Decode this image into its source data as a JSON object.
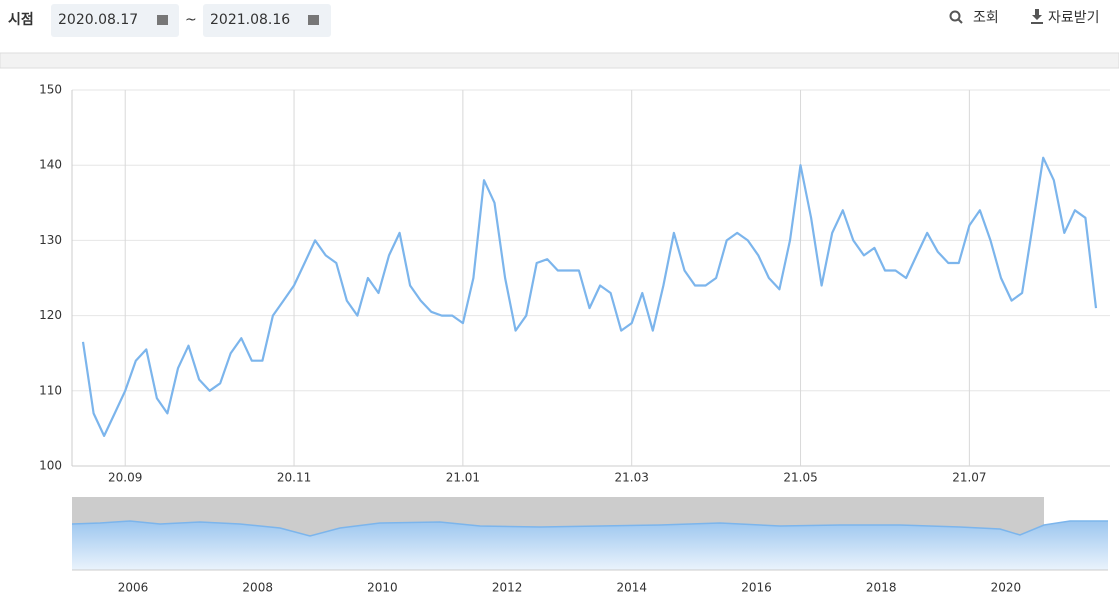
{
  "header": {
    "label": "시점",
    "start": "2020.08.17",
    "separator": "~",
    "end": "2021.08.16",
    "search": "조회",
    "download": "자료받기"
  },
  "chart_data": {
    "type": "line",
    "categories": [
      null,
      null,
      null,
      null,
      "20.09",
      null,
      null,
      null,
      null,
      null,
      null,
      null,
      null,
      null,
      null,
      null,
      null,
      null,
      null,
      null,
      "20.11",
      null,
      null,
      null,
      null,
      null,
      null,
      null,
      null,
      null,
      null,
      null,
      null,
      null,
      null,
      null,
      "21.01",
      null,
      null,
      null,
      null,
      null,
      null,
      null,
      null,
      null,
      null,
      null,
      null,
      null,
      null,
      null,
      "21.03",
      null,
      null,
      null,
      null,
      null,
      null,
      null,
      null,
      null,
      null,
      null,
      null,
      null,
      null,
      null,
      "21.05",
      null,
      null,
      null,
      null,
      null,
      null,
      null,
      null,
      null,
      null,
      null,
      null,
      null,
      null,
      null,
      "21.07",
      null,
      null,
      null,
      null,
      null,
      null,
      null,
      null,
      null,
      null,
      null,
      null
    ],
    "series": [
      {
        "color": "#7cb5ec",
        "values": [
          116.5,
          107,
          104,
          107,
          110,
          114,
          115.5,
          109,
          107,
          113,
          116,
          111.5,
          110,
          111,
          115,
          117,
          114,
          114,
          120,
          122,
          124,
          127,
          130,
          128,
          127,
          122,
          120,
          125,
          123,
          128,
          131,
          124,
          122,
          120.5,
          120,
          120,
          119,
          125,
          138,
          135,
          125,
          118,
          120,
          127,
          127.5,
          126,
          126,
          126,
          121,
          124,
          123,
          118,
          119,
          123,
          118,
          124,
          131,
          126,
          124,
          124,
          125,
          130,
          131,
          130,
          128,
          125,
          123.5,
          130,
          140,
          133,
          124,
          131,
          134,
          130,
          128,
          129,
          126,
          126,
          125,
          128,
          131,
          128.5,
          127,
          127,
          132,
          134,
          130,
          125,
          122,
          123,
          132,
          141,
          138,
          131,
          134,
          133,
          121
        ]
      }
    ],
    "ylim": [
      100,
      150
    ],
    "yticks": [
      100,
      110,
      120,
      130,
      140,
      150
    ],
    "grid": true
  },
  "navigator": {
    "labels": [
      "2006",
      "2008",
      "2010",
      "2012",
      "2014",
      "2016",
      "2018",
      "2020"
    ]
  }
}
